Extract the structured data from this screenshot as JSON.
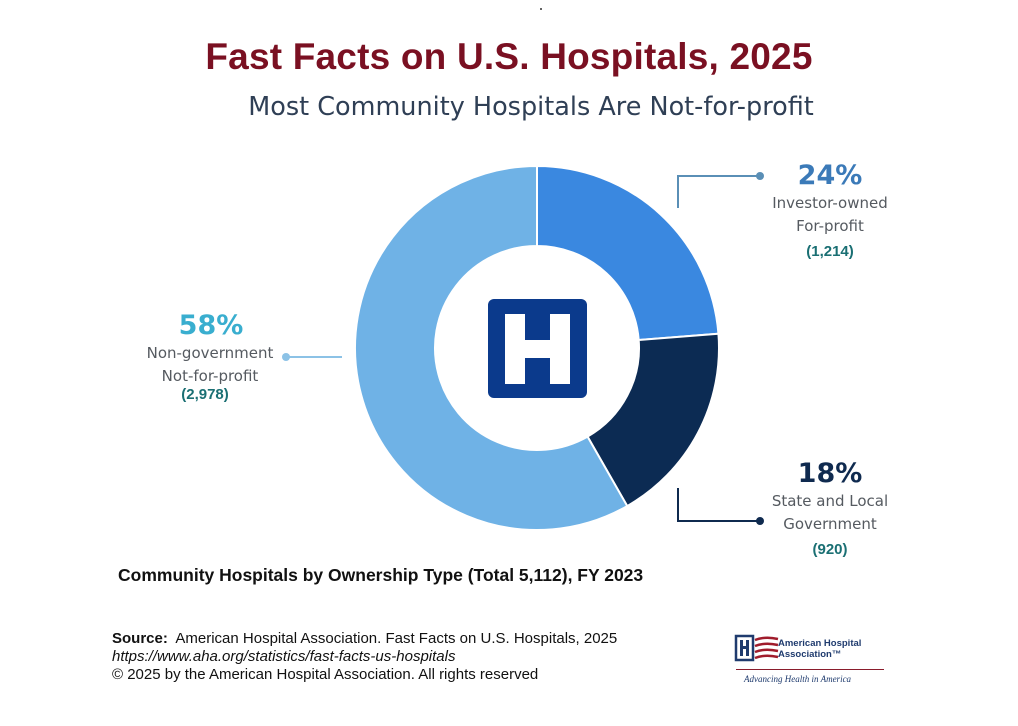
{
  "header": {
    "title": "Fast Facts on U.S. Hospitals, 2025",
    "subtitle": "Most Community Hospitals Are Not-for-profit"
  },
  "chart_data": {
    "type": "pie",
    "variant": "donut",
    "title": "Community Hospitals by Ownership Type (Total 5,112), FY 2023",
    "total": 5112,
    "slices": [
      {
        "pct_label": "24%",
        "value": 1214,
        "value_label": "(1,214)",
        "label_line1": "Investor-owned",
        "label_line2": "For-profit",
        "color": "#3a88e0"
      },
      {
        "pct_label": "18%",
        "value": 920,
        "value_label": "(920)",
        "label_line1": "State and Local",
        "label_line2": "Government",
        "color": "#0c2b53"
      },
      {
        "pct_label": "58%",
        "value": 2978,
        "value_label": "(2,978)",
        "label_line1": "Non-government",
        "label_line2": "Not-for-profit",
        "color": "#6fb2e6"
      }
    ],
    "percent_colors": [
      "#3b7ab8",
      "#0f2a4f",
      "#39aecf"
    ],
    "center_icon": "hospital-h-icon"
  },
  "footer": {
    "source_lead": "Source:",
    "source_text": "American Hospital Association.  Fast Facts on U.S. Hospitals, 2025",
    "url": "https://www.aha.org/statistics/fast-facts-us-hospitals",
    "copyright": "© 2025 by the American Hospital Association. All rights reserved"
  },
  "logo": {
    "name_line1": "American Hospital",
    "name_line2": "Association™",
    "tagline": "Advancing Health in America",
    "icon": "aha-logo-icon"
  }
}
